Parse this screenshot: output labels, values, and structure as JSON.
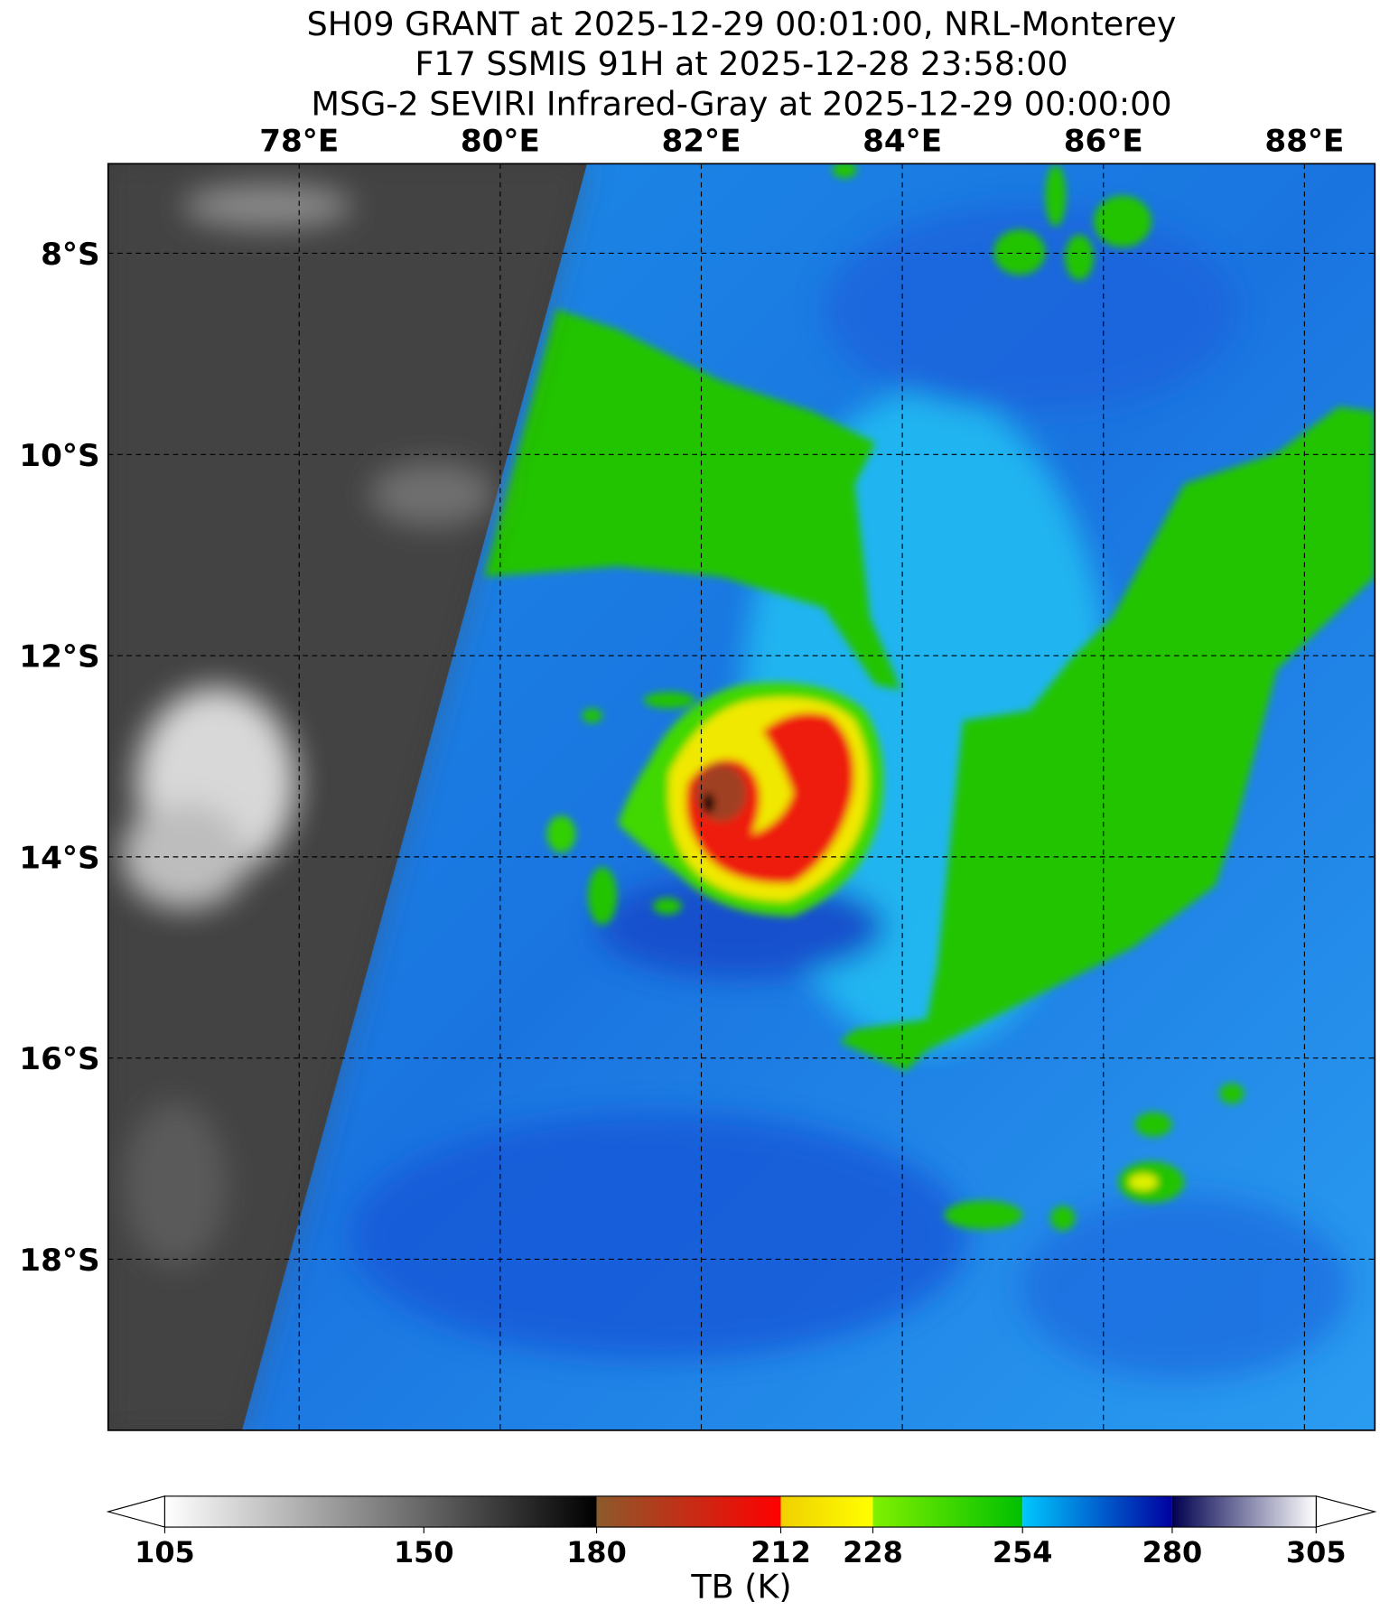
{
  "title_lines": [
    "SH09 GRANT at 2025-12-29 00:01:00, NRL-Monterey",
    "F17 SSMIS 91H at 2025-12-28 23:58:00",
    "MSG-2 SEVIRI Infrared-Gray at 2025-12-29 00:00:00"
  ],
  "map": {
    "xlim": [
      76.1,
      88.7
    ],
    "ylim": [
      -19.7,
      -7.11
    ],
    "xticks": [
      {
        "value": 78,
        "label": "78°E"
      },
      {
        "value": 80,
        "label": "80°E"
      },
      {
        "value": 82,
        "label": "82°E"
      },
      {
        "value": 84,
        "label": "84°E"
      },
      {
        "value": 86,
        "label": "86°E"
      },
      {
        "value": 88,
        "label": "88°E"
      }
    ],
    "yticks": [
      {
        "value": -8,
        "label": "8°S"
      },
      {
        "value": -10,
        "label": "10°S"
      },
      {
        "value": -12,
        "label": "12°S"
      },
      {
        "value": -14,
        "label": "14°S"
      },
      {
        "value": -16,
        "label": "16°S"
      },
      {
        "value": -18,
        "label": "18°S"
      }
    ]
  },
  "colorbar": {
    "label": "TB (K)",
    "lim": [
      105,
      305
    ],
    "ticks": [
      105,
      150,
      180,
      212,
      228,
      254,
      280,
      305
    ],
    "segments": [
      {
        "from": 105,
        "to": 180,
        "colors": [
          "#ffffff",
          "#000000"
        ]
      },
      {
        "from": 180,
        "to": 212,
        "colors": [
          "#8b5a2b",
          "#ff0000"
        ]
      },
      {
        "from": 212,
        "to": 228,
        "colors": [
          "#f0d000",
          "#ffff00"
        ]
      },
      {
        "from": 228,
        "to": 254,
        "colors": [
          "#80f000",
          "#00c000"
        ]
      },
      {
        "from": 254,
        "to": 280,
        "colors": [
          "#00c8ff",
          "#0000a0"
        ]
      },
      {
        "from": 280,
        "to": 305,
        "colors": [
          "#000050",
          "#ffffff"
        ]
      }
    ]
  }
}
